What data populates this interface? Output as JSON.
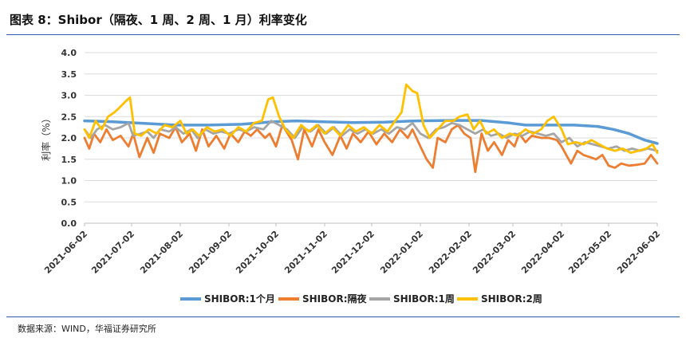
{
  "title": "图表 8：Shibor（隔夜、1 周、2 周、1 月）利率变化",
  "source": "数据来源：WIND，华福证券研究所",
  "chart_data": {
    "type": "line",
    "title": "图表 8：Shibor（隔夜、1 周、2 周、1 月）利率变化",
    "xlabel": "",
    "ylabel": "利率（%）",
    "ylim": [
      0,
      4
    ],
    "yticks": [
      "0.0",
      "0.5",
      "1.0",
      "1.5",
      "2.0",
      "2.5",
      "3.0",
      "3.5",
      "4.0"
    ],
    "xlim": [
      "2021-06-02",
      "2022-06-02"
    ],
    "xticks": [
      "2021-06-02",
      "2021-07-02",
      "2021-08-02",
      "2021-09-02",
      "2021-10-02",
      "2021-11-02",
      "2021-12-02",
      "2022-01-02",
      "2022-02-02",
      "2022-03-02",
      "2022-04-02",
      "2022-05-02",
      "2022-06-02"
    ],
    "grid": "horizontal",
    "legend": "bottom",
    "series": [
      {
        "name": "SHIBOR:1个月",
        "color": "#5b9bd5",
        "points": [
          [
            "2021-06-02",
            2.4
          ],
          [
            "2021-06-20",
            2.38
          ],
          [
            "2021-07-10",
            2.34
          ],
          [
            "2021-07-30",
            2.3
          ],
          [
            "2021-08-20",
            2.3
          ],
          [
            "2021-09-10",
            2.32
          ],
          [
            "2021-09-30",
            2.38
          ],
          [
            "2021-10-15",
            2.4
          ],
          [
            "2021-11-01",
            2.38
          ],
          [
            "2021-11-20",
            2.36
          ],
          [
            "2021-12-10",
            2.37
          ],
          [
            "2021-12-31",
            2.4
          ],
          [
            "2022-01-20",
            2.41
          ],
          [
            "2022-02-10",
            2.41
          ],
          [
            "2022-02-28",
            2.35
          ],
          [
            "2022-03-10",
            2.3
          ],
          [
            "2022-03-25",
            2.3
          ],
          [
            "2022-04-10",
            2.3
          ],
          [
            "2022-04-25",
            2.27
          ],
          [
            "2022-05-05",
            2.2
          ],
          [
            "2022-05-15",
            2.1
          ],
          [
            "2022-05-25",
            1.95
          ],
          [
            "2022-06-02",
            1.87
          ]
        ]
      },
      {
        "name": "SHIBOR:隔夜",
        "color": "#ed7d31",
        "points": [
          [
            "2021-06-02",
            2.0
          ],
          [
            "2021-06-05",
            1.75
          ],
          [
            "2021-06-08",
            2.1
          ],
          [
            "2021-06-12",
            1.9
          ],
          [
            "2021-06-16",
            2.2
          ],
          [
            "2021-06-20",
            1.95
          ],
          [
            "2021-06-25",
            2.05
          ],
          [
            "2021-06-30",
            1.8
          ],
          [
            "2021-07-03",
            2.1
          ],
          [
            "2021-07-07",
            1.55
          ],
          [
            "2021-07-12",
            2.0
          ],
          [
            "2021-07-16",
            1.65
          ],
          [
            "2021-07-20",
            2.1
          ],
          [
            "2021-07-26",
            2.0
          ],
          [
            "2021-07-30",
            2.25
          ],
          [
            "2021-08-03",
            1.9
          ],
          [
            "2021-08-08",
            2.1
          ],
          [
            "2021-08-12",
            1.7
          ],
          [
            "2021-08-16",
            2.2
          ],
          [
            "2021-08-20",
            1.8
          ],
          [
            "2021-08-25",
            2.05
          ],
          [
            "2021-08-30",
            1.75
          ],
          [
            "2021-09-03",
            2.1
          ],
          [
            "2021-09-08",
            1.9
          ],
          [
            "2021-09-12",
            2.15
          ],
          [
            "2021-09-16",
            2.05
          ],
          [
            "2021-09-20",
            2.2
          ],
          [
            "2021-09-25",
            2.0
          ],
          [
            "2021-09-28",
            2.1
          ],
          [
            "2021-10-02",
            1.8
          ],
          [
            "2021-10-06",
            2.3
          ],
          [
            "2021-10-12",
            1.95
          ],
          [
            "2021-10-16",
            1.5
          ],
          [
            "2021-10-20",
            2.2
          ],
          [
            "2021-10-25",
            1.8
          ],
          [
            "2021-10-29",
            2.2
          ],
          [
            "2021-11-02",
            1.9
          ],
          [
            "2021-11-07",
            1.6
          ],
          [
            "2021-11-12",
            2.05
          ],
          [
            "2021-11-16",
            1.75
          ],
          [
            "2021-11-20",
            2.1
          ],
          [
            "2021-11-25",
            1.9
          ],
          [
            "2021-11-30",
            2.15
          ],
          [
            "2021-12-05",
            1.85
          ],
          [
            "2021-12-10",
            2.1
          ],
          [
            "2021-12-15",
            1.9
          ],
          [
            "2021-12-20",
            2.2
          ],
          [
            "2021-12-25",
            2.0
          ],
          [
            "2021-12-28",
            2.2
          ],
          [
            "2022-01-02",
            1.8
          ],
          [
            "2022-01-06",
            1.5
          ],
          [
            "2022-01-10",
            1.3
          ],
          [
            "2022-01-13",
            2.0
          ],
          [
            "2022-01-18",
            1.9
          ],
          [
            "2022-01-22",
            2.2
          ],
          [
            "2022-01-26",
            2.3
          ],
          [
            "2022-01-30",
            2.1
          ],
          [
            "2022-02-03",
            2.0
          ],
          [
            "2022-02-06",
            1.2
          ],
          [
            "2022-02-10",
            2.1
          ],
          [
            "2022-02-14",
            1.7
          ],
          [
            "2022-02-18",
            1.9
          ],
          [
            "2022-02-23",
            1.6
          ],
          [
            "2022-02-27",
            1.95
          ],
          [
            "2022-03-03",
            1.8
          ],
          [
            "2022-03-06",
            2.1
          ],
          [
            "2022-03-10",
            1.9
          ],
          [
            "2022-03-14",
            2.05
          ],
          [
            "2022-03-20",
            2.0
          ],
          [
            "2022-03-25",
            2.0
          ],
          [
            "2022-03-30",
            1.95
          ],
          [
            "2022-04-02",
            1.8
          ],
          [
            "2022-04-05",
            1.6
          ],
          [
            "2022-04-08",
            1.4
          ],
          [
            "2022-04-12",
            1.7
          ],
          [
            "2022-04-16",
            1.6
          ],
          [
            "2022-04-20",
            1.55
          ],
          [
            "2022-04-24",
            1.5
          ],
          [
            "2022-04-28",
            1.6
          ],
          [
            "2022-05-02",
            1.35
          ],
          [
            "2022-05-06",
            1.3
          ],
          [
            "2022-05-10",
            1.4
          ],
          [
            "2022-05-15",
            1.35
          ],
          [
            "2022-05-20",
            1.37
          ],
          [
            "2022-05-25",
            1.4
          ],
          [
            "2022-05-29",
            1.6
          ],
          [
            "2022-06-02",
            1.4
          ]
        ]
      },
      {
        "name": "SHIBOR:1周",
        "color": "#a5a5a5",
        "points": [
          [
            "2021-06-02",
            2.2
          ],
          [
            "2021-06-06",
            2.0
          ],
          [
            "2021-06-10",
            2.2
          ],
          [
            "2021-06-15",
            2.3
          ],
          [
            "2021-06-20",
            2.2
          ],
          [
            "2021-06-25",
            2.25
          ],
          [
            "2021-06-30",
            2.35
          ],
          [
            "2021-07-03",
            2.05
          ],
          [
            "2021-07-08",
            2.1
          ],
          [
            "2021-07-12",
            2.15
          ],
          [
            "2021-07-16",
            2.0
          ],
          [
            "2021-07-20",
            2.2
          ],
          [
            "2021-07-26",
            2.15
          ],
          [
            "2021-07-30",
            2.25
          ],
          [
            "2021-08-04",
            2.1
          ],
          [
            "2021-08-09",
            2.2
          ],
          [
            "2021-08-13",
            2.0
          ],
          [
            "2021-08-18",
            2.2
          ],
          [
            "2021-08-23",
            2.1
          ],
          [
            "2021-08-28",
            2.15
          ],
          [
            "2021-09-02",
            2.1
          ],
          [
            "2021-09-08",
            2.2
          ],
          [
            "2021-09-13",
            2.15
          ],
          [
            "2021-09-18",
            2.25
          ],
          [
            "2021-09-24",
            2.2
          ],
          [
            "2021-09-29",
            2.4
          ],
          [
            "2021-10-04",
            2.3
          ],
          [
            "2021-10-09",
            2.2
          ],
          [
            "2021-10-14",
            2.0
          ],
          [
            "2021-10-19",
            2.25
          ],
          [
            "2021-10-24",
            2.15
          ],
          [
            "2021-10-29",
            2.3
          ],
          [
            "2021-11-03",
            2.1
          ],
          [
            "2021-11-08",
            2.25
          ],
          [
            "2021-11-13",
            2.05
          ],
          [
            "2021-11-18",
            2.2
          ],
          [
            "2021-11-23",
            2.1
          ],
          [
            "2021-11-28",
            2.2
          ],
          [
            "2021-12-03",
            2.1
          ],
          [
            "2021-12-08",
            2.2
          ],
          [
            "2021-12-13",
            2.1
          ],
          [
            "2021-12-18",
            2.25
          ],
          [
            "2021-12-23",
            2.2
          ],
          [
            "2021-12-28",
            2.35
          ],
          [
            "2022-01-02",
            2.1
          ],
          [
            "2022-01-07",
            2.0
          ],
          [
            "2022-01-12",
            2.2
          ],
          [
            "2022-01-17",
            2.25
          ],
          [
            "2022-01-22",
            2.35
          ],
          [
            "2022-01-27",
            2.3
          ],
          [
            "2022-02-01",
            2.2
          ],
          [
            "2022-02-06",
            2.1
          ],
          [
            "2022-02-11",
            2.2
          ],
          [
            "2022-02-16",
            2.05
          ],
          [
            "2022-02-21",
            2.1
          ],
          [
            "2022-02-26",
            2.0
          ],
          [
            "2022-03-03",
            2.1
          ],
          [
            "2022-03-08",
            2.05
          ],
          [
            "2022-03-13",
            2.15
          ],
          [
            "2022-03-18",
            2.1
          ],
          [
            "2022-03-23",
            2.05
          ],
          [
            "2022-03-28",
            2.1
          ],
          [
            "2022-04-02",
            1.9
          ],
          [
            "2022-04-07",
            2.0
          ],
          [
            "2022-04-12",
            1.8
          ],
          [
            "2022-04-17",
            1.9
          ],
          [
            "2022-04-22",
            1.85
          ],
          [
            "2022-04-27",
            1.8
          ],
          [
            "2022-05-02",
            1.75
          ],
          [
            "2022-05-07",
            1.8
          ],
          [
            "2022-05-12",
            1.7
          ],
          [
            "2022-05-17",
            1.75
          ],
          [
            "2022-05-22",
            1.7
          ],
          [
            "2022-05-27",
            1.75
          ],
          [
            "2022-06-02",
            1.7
          ]
        ]
      },
      {
        "name": "SHIBOR:2周",
        "color": "#ffc000",
        "points": [
          [
            "2021-06-02",
            2.2
          ],
          [
            "2021-06-05",
            2.0
          ],
          [
            "2021-06-09",
            2.4
          ],
          [
            "2021-06-13",
            2.2
          ],
          [
            "2021-06-17",
            2.5
          ],
          [
            "2021-06-21",
            2.6
          ],
          [
            "2021-06-24",
            2.7
          ],
          [
            "2021-06-28",
            2.85
          ],
          [
            "2021-07-01",
            2.95
          ],
          [
            "2021-07-04",
            2.1
          ],
          [
            "2021-07-08",
            2.05
          ],
          [
            "2021-07-13",
            2.2
          ],
          [
            "2021-07-18",
            2.1
          ],
          [
            "2021-07-23",
            2.3
          ],
          [
            "2021-07-28",
            2.25
          ],
          [
            "2021-08-02",
            2.4
          ],
          [
            "2021-08-06",
            2.1
          ],
          [
            "2021-08-10",
            2.2
          ],
          [
            "2021-08-14",
            2.05
          ],
          [
            "2021-08-19",
            2.25
          ],
          [
            "2021-08-24",
            2.15
          ],
          [
            "2021-08-29",
            2.2
          ],
          [
            "2021-09-03",
            2.05
          ],
          [
            "2021-09-08",
            2.25
          ],
          [
            "2021-09-13",
            2.15
          ],
          [
            "2021-09-18",
            2.35
          ],
          [
            "2021-09-23",
            2.4
          ],
          [
            "2021-09-27",
            2.9
          ],
          [
            "2021-09-30",
            2.95
          ],
          [
            "2021-10-04",
            2.5
          ],
          [
            "2021-10-08",
            2.2
          ],
          [
            "2021-10-13",
            2.0
          ],
          [
            "2021-10-18",
            2.3
          ],
          [
            "2021-10-23",
            2.15
          ],
          [
            "2021-10-28",
            2.3
          ],
          [
            "2021-11-02",
            2.1
          ],
          [
            "2021-11-07",
            2.25
          ],
          [
            "2021-11-12",
            2.05
          ],
          [
            "2021-11-17",
            2.3
          ],
          [
            "2021-11-22",
            2.15
          ],
          [
            "2021-11-27",
            2.25
          ],
          [
            "2021-12-02",
            2.1
          ],
          [
            "2021-12-07",
            2.3
          ],
          [
            "2021-12-12",
            2.15
          ],
          [
            "2021-12-17",
            2.4
          ],
          [
            "2021-12-21",
            2.6
          ],
          [
            "2021-12-24",
            3.25
          ],
          [
            "2021-12-28",
            3.1
          ],
          [
            "2021-12-31",
            3.05
          ],
          [
            "2022-01-04",
            2.3
          ],
          [
            "2022-01-08",
            2.0
          ],
          [
            "2022-01-13",
            2.2
          ],
          [
            "2022-01-18",
            2.4
          ],
          [
            "2022-01-23",
            2.4
          ],
          [
            "2022-01-27",
            2.5
          ],
          [
            "2022-02-01",
            2.55
          ],
          [
            "2022-02-05",
            2.2
          ],
          [
            "2022-02-09",
            2.4
          ],
          [
            "2022-02-13",
            2.1
          ],
          [
            "2022-02-18",
            2.2
          ],
          [
            "2022-02-23",
            2.0
          ],
          [
            "2022-02-28",
            2.1
          ],
          [
            "2022-03-05",
            2.05
          ],
          [
            "2022-03-10",
            2.2
          ],
          [
            "2022-03-15",
            2.1
          ],
          [
            "2022-03-20",
            2.2
          ],
          [
            "2022-03-24",
            2.4
          ],
          [
            "2022-03-28",
            2.5
          ],
          [
            "2022-04-02",
            2.2
          ],
          [
            "2022-04-06",
            1.85
          ],
          [
            "2022-04-11",
            1.9
          ],
          [
            "2022-04-16",
            1.85
          ],
          [
            "2022-04-21",
            1.95
          ],
          [
            "2022-04-26",
            1.85
          ],
          [
            "2022-05-01",
            1.75
          ],
          [
            "2022-05-06",
            1.7
          ],
          [
            "2022-05-11",
            1.75
          ],
          [
            "2022-05-16",
            1.65
          ],
          [
            "2022-05-21",
            1.7
          ],
          [
            "2022-05-26",
            1.75
          ],
          [
            "2022-05-30",
            1.85
          ],
          [
            "2022-06-02",
            1.65
          ]
        ]
      }
    ]
  }
}
